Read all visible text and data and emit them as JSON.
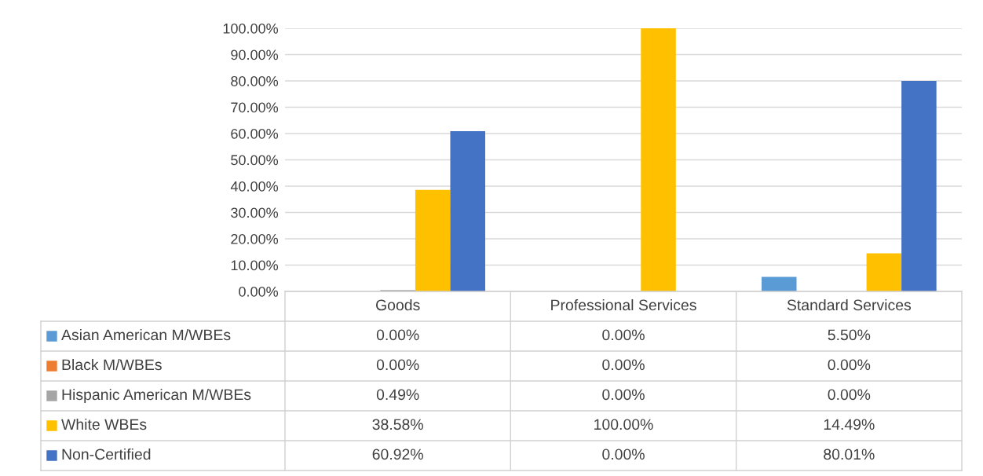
{
  "chart_data": {
    "type": "bar",
    "categories": [
      "Goods",
      "Professional Services",
      "Standard Services"
    ],
    "series": [
      {
        "name": "Asian American M/WBEs",
        "color": "#5b9bd5",
        "values": [
          0,
          0,
          5.5
        ],
        "value_labels": [
          "0.00%",
          "0.00%",
          "5.50%"
        ]
      },
      {
        "name": "Black M/WBEs",
        "color": "#ed7d31",
        "values": [
          0,
          0,
          0
        ],
        "value_labels": [
          "0.00%",
          "0.00%",
          "0.00%"
        ]
      },
      {
        "name": "Hispanic American M/WBEs",
        "color": "#a5a5a5",
        "values": [
          0.49,
          0,
          0
        ],
        "value_labels": [
          "0.49%",
          "0.00%",
          "0.00%"
        ]
      },
      {
        "name": "White WBEs",
        "color": "#ffc000",
        "values": [
          38.58,
          100,
          14.49
        ],
        "value_labels": [
          "38.58%",
          "100.00%",
          "14.49%"
        ]
      },
      {
        "name": "Non-Certified",
        "color": "#4472c4",
        "values": [
          60.92,
          0,
          80.01
        ],
        "value_labels": [
          "60.92%",
          "0.00%",
          "80.01%"
        ]
      }
    ],
    "ylim": [
      0,
      100
    ],
    "yticks": [
      {
        "value": 0,
        "label": "0.00%"
      },
      {
        "value": 10,
        "label": "10.00%"
      },
      {
        "value": 20,
        "label": "20.00%"
      },
      {
        "value": 30,
        "label": "30.00%"
      },
      {
        "value": 40,
        "label": "40.00%"
      },
      {
        "value": 50,
        "label": "50.00%"
      },
      {
        "value": 60,
        "label": "60.00%"
      },
      {
        "value": 70,
        "label": "70.00%"
      },
      {
        "value": 80,
        "label": "80.00%"
      },
      {
        "value": 90,
        "label": "90.00%"
      },
      {
        "value": 100,
        "label": "100.00%"
      }
    ],
    "grid": "y",
    "legend": "bottom"
  }
}
